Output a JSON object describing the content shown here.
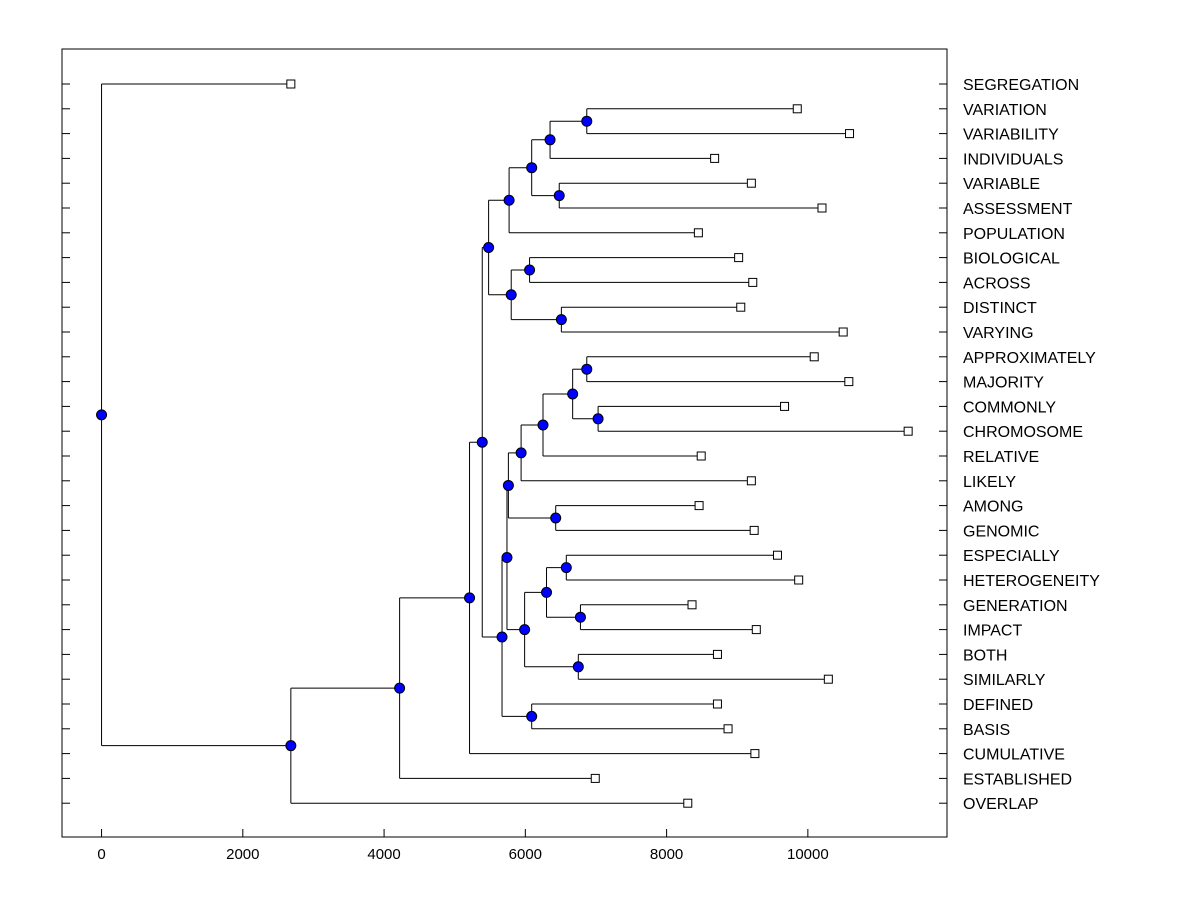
{
  "chart_data": {
    "type": "dendrogram",
    "title": "",
    "xlabel": "",
    "ylabel": "",
    "xlim": [
      -560,
      11970
    ],
    "xticks": [
      0,
      2000,
      4000,
      6000,
      8000,
      10000
    ],
    "grid": false,
    "leaves": [
      {
        "label": "SEGREGATION",
        "x": 2680
      },
      {
        "label": "VARIATION",
        "x": 9850
      },
      {
        "label": "VARIABILITY",
        "x": 10590
      },
      {
        "label": "INDIVIDUALS",
        "x": 8680
      },
      {
        "label": "VARIABLE",
        "x": 9200
      },
      {
        "label": "ASSESSMENT",
        "x": 10200
      },
      {
        "label": "POPULATION",
        "x": 8450
      },
      {
        "label": "BIOLOGICAL",
        "x": 9020
      },
      {
        "label": "ACROSS",
        "x": 9220
      },
      {
        "label": "DISTINCT",
        "x": 9050
      },
      {
        "label": "VARYING",
        "x": 10500
      },
      {
        "label": "APPROXIMATELY",
        "x": 10090
      },
      {
        "label": "MAJORITY",
        "x": 10580
      },
      {
        "label": "COMMONLY",
        "x": 9670
      },
      {
        "label": "CHROMOSOME",
        "x": 11420
      },
      {
        "label": "RELATIVE",
        "x": 8490
      },
      {
        "label": "LIKELY",
        "x": 9200
      },
      {
        "label": "AMONG",
        "x": 8460
      },
      {
        "label": "GENOMIC",
        "x": 9240
      },
      {
        "label": "ESPECIALLY",
        "x": 9570
      },
      {
        "label": "HETEROGENEITY",
        "x": 9870
      },
      {
        "label": "GENERATION",
        "x": 8360
      },
      {
        "label": "IMPACT",
        "x": 9270
      },
      {
        "label": "BOTH",
        "x": 8720
      },
      {
        "label": "SIMILARLY",
        "x": 10290
      },
      {
        "label": "DEFINED",
        "x": 8720
      },
      {
        "label": "BASIS",
        "x": 8870
      },
      {
        "label": "CUMULATIVE",
        "x": 9250
      },
      {
        "label": "ESTABLISHED",
        "x": 6990
      },
      {
        "label": "OVERLAP",
        "x": 8300
      }
    ],
    "merges": [
      {
        "id": "n1",
        "x": 6870,
        "children": [
          "VARIATION",
          "VARIABILITY"
        ]
      },
      {
        "id": "n2",
        "x": 6350,
        "children": [
          "n1",
          "INDIVIDUALS"
        ]
      },
      {
        "id": "n3",
        "x": 6480,
        "children": [
          "VARIABLE",
          "ASSESSMENT"
        ]
      },
      {
        "id": "n4",
        "x": 6090,
        "children": [
          "n2",
          "n3"
        ]
      },
      {
        "id": "n5",
        "x": 5770,
        "children": [
          "n4",
          "POPULATION"
        ]
      },
      {
        "id": "n6",
        "x": 6060,
        "children": [
          "BIOLOGICAL",
          "ACROSS"
        ]
      },
      {
        "id": "n7",
        "x": 6510,
        "children": [
          "DISTINCT",
          "VARYING"
        ]
      },
      {
        "id": "n8",
        "x": 5800,
        "children": [
          "n6",
          "n7"
        ]
      },
      {
        "id": "n9",
        "x": 5480,
        "children": [
          "n5",
          "n8"
        ]
      },
      {
        "id": "n10",
        "x": 6870,
        "children": [
          "APPROXIMATELY",
          "MAJORITY"
        ]
      },
      {
        "id": "n11",
        "x": 7030,
        "children": [
          "COMMONLY",
          "CHROMOSOME"
        ]
      },
      {
        "id": "n12",
        "x": 6670,
        "children": [
          "n10",
          "n11"
        ]
      },
      {
        "id": "n13",
        "x": 6250,
        "children": [
          "n12",
          "RELATIVE"
        ]
      },
      {
        "id": "n14",
        "x": 5940,
        "children": [
          "n13",
          "LIKELY"
        ]
      },
      {
        "id": "n15",
        "x": 6430,
        "children": [
          "AMONG",
          "GENOMIC"
        ]
      },
      {
        "id": "n16",
        "x": 5760,
        "children": [
          "n14",
          "n15"
        ]
      },
      {
        "id": "n17",
        "x": 6580,
        "children": [
          "ESPECIALLY",
          "HETEROGENEITY"
        ]
      },
      {
        "id": "n18",
        "x": 6780,
        "children": [
          "GENERATION",
          "IMPACT"
        ]
      },
      {
        "id": "n19",
        "x": 6300,
        "children": [
          "n17",
          "n18"
        ]
      },
      {
        "id": "n20",
        "x": 6750,
        "children": [
          "BOTH",
          "SIMILARLY"
        ]
      },
      {
        "id": "n21",
        "x": 5990,
        "children": [
          "n19",
          "n20"
        ]
      },
      {
        "id": "n22",
        "x": 5740,
        "children": [
          "n16",
          "n21"
        ]
      },
      {
        "id": "n23",
        "x": 6090,
        "children": [
          "DEFINED",
          "BASIS"
        ]
      },
      {
        "id": "n24",
        "x": 5670,
        "children": [
          "n22",
          "n23"
        ]
      },
      {
        "id": "n25",
        "x": 5390,
        "children": [
          "n9",
          "n24"
        ]
      },
      {
        "id": "n26",
        "x": 5210,
        "children": [
          "n25",
          "CUMULATIVE"
        ]
      },
      {
        "id": "n27",
        "x": 4220,
        "children": [
          "n26",
          "ESTABLISHED"
        ]
      },
      {
        "id": "n28",
        "x": 2680,
        "children": [
          "n27",
          "OVERLAP"
        ]
      },
      {
        "id": "root",
        "x": 0,
        "children": [
          "SEGREGATION",
          "n28"
        ]
      }
    ]
  },
  "colors": {
    "node_fill": "#0000ff",
    "leaf_fill": "#ffffff",
    "line": "#000000",
    "background": "#ffffff"
  }
}
